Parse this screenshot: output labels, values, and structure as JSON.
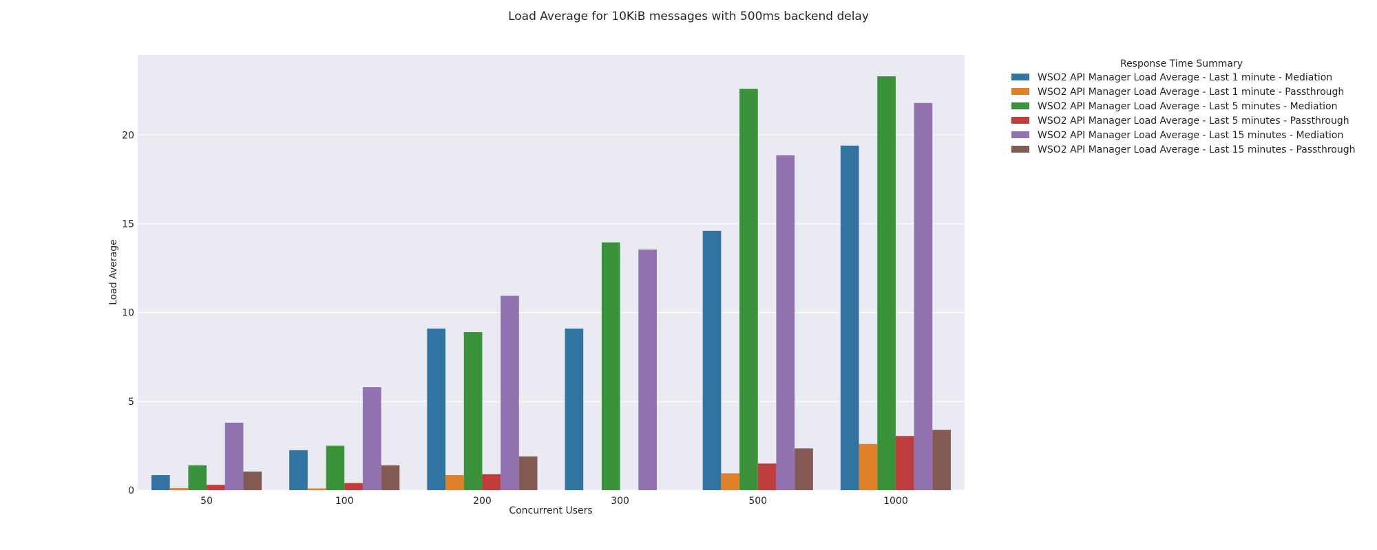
{
  "chart_data": {
    "type": "bar",
    "title": "Load Average for 10KiB messages with 500ms backend delay",
    "xlabel": "Concurrent Users",
    "ylabel": "Load Average",
    "categories": [
      "50",
      "100",
      "200",
      "300",
      "500",
      "1000"
    ],
    "ylim": [
      0,
      24.5
    ],
    "yticks": [
      0,
      5,
      10,
      15,
      20
    ],
    "grid": true,
    "legend_title": "Response Time Summary",
    "legend_position": "outside-top-right",
    "series": [
      {
        "name": "WSO2 API Manager Load Average - Last 1 minute - Mediation",
        "color": "#3274a1",
        "values": [
          0.85,
          2.25,
          9.1,
          9.1,
          14.6,
          19.4
        ]
      },
      {
        "name": "WSO2 API Manager Load Average - Last 1 minute - Passthrough",
        "color": "#e1812c",
        "values": [
          0.12,
          0.1,
          0.85,
          0,
          0.95,
          2.6
        ]
      },
      {
        "name": "WSO2 API Manager Load Average - Last 5 minutes - Mediation",
        "color": "#3a923a",
        "values": [
          1.4,
          2.5,
          8.9,
          13.95,
          22.6,
          23.3
        ]
      },
      {
        "name": "WSO2 API Manager Load Average - Last 5 minutes - Passthrough",
        "color": "#c03d3e",
        "values": [
          0.3,
          0.4,
          0.9,
          0,
          1.5,
          3.05
        ]
      },
      {
        "name": "WSO2 API Manager Load Average - Last 15 minutes - Mediation",
        "color": "#9372b2",
        "values": [
          3.8,
          5.8,
          10.95,
          13.55,
          18.85,
          21.8
        ]
      },
      {
        "name": "WSO2 API Manager Load Average - Last 15 minutes - Passthrough",
        "color": "#845b53",
        "values": [
          1.05,
          1.4,
          1.9,
          0,
          2.35,
          3.4
        ]
      }
    ]
  }
}
